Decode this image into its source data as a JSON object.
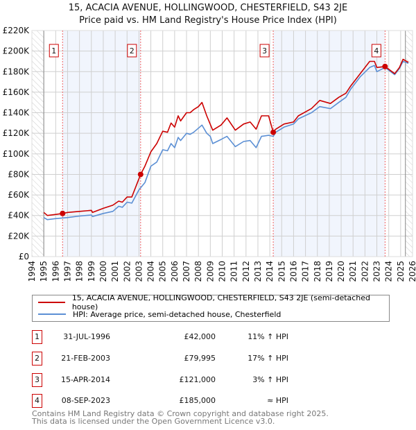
{
  "chart_data": {
    "type": "line",
    "title": "15, ACACIA AVENUE, HOLLINGWOOD, CHESTERFIELD, S43 2JE",
    "subtitle": "Price paid vs. HM Land Registry's House Price Index (HPI)",
    "xlim": [
      1994,
      2026
    ],
    "ylim": [
      0,
      220000
    ],
    "x_ticks": [
      "1994",
      "1995",
      "1996",
      "1997",
      "1998",
      "1999",
      "2000",
      "2001",
      "2002",
      "2003",
      "2004",
      "2005",
      "2006",
      "2007",
      "2008",
      "2009",
      "2010",
      "2011",
      "2012",
      "2013",
      "2014",
      "2015",
      "2016",
      "2017",
      "2018",
      "2019",
      "2020",
      "2021",
      "2022",
      "2023",
      "2024",
      "2025",
      "2026"
    ],
    "y_ticks": [
      {
        "v": 0,
        "label": "£0"
      },
      {
        "v": 20000,
        "label": "£20K"
      },
      {
        "v": 40000,
        "label": "£40K"
      },
      {
        "v": 60000,
        "label": "£60K"
      },
      {
        "v": 80000,
        "label": "£80K"
      },
      {
        "v": 100000,
        "label": "£100K"
      },
      {
        "v": 120000,
        "label": "£120K"
      },
      {
        "v": 140000,
        "label": "£140K"
      },
      {
        "v": 160000,
        "label": "£160K"
      },
      {
        "v": 180000,
        "label": "£180K"
      },
      {
        "v": 200000,
        "label": "£200K"
      },
      {
        "v": 220000,
        "label": "£220K"
      }
    ],
    "hatched_ranges": [
      [
        1994,
        1995
      ],
      [
        2025.4,
        2026
      ]
    ],
    "shaded_ranges": [
      [
        1996.58,
        2003.14
      ],
      [
        2014.29,
        2023.69
      ]
    ],
    "series": [
      {
        "name": "15, ACACIA AVENUE, HOLLINGWOOD, CHESTERFIELD, S43 2JE (semi-detached house)",
        "color": "#cc0000",
        "x": [
          1995,
          1995.3,
          1996,
          1996.58,
          1997,
          1998,
          1999,
          1999.1,
          2000,
          2000.8,
          2001.3,
          2001.6,
          2002,
          2002.4,
          2003.14,
          2003.5,
          2004,
          2004.5,
          2005,
          2005.4,
          2005.7,
          2006,
          2006.3,
          2006.5,
          2007,
          2007.3,
          2007.6,
          2008,
          2008.3,
          2008.7,
          2009.2,
          2009.9,
          2010.4,
          2011.1,
          2011.8,
          2012.35,
          2012.85,
          2013.3,
          2013.9,
          2014.29,
          2014.5,
          2015.2,
          2016,
          2016.4,
          2017.5,
          2018.2,
          2019.1,
          2019.8,
          2020.4,
          2020.8,
          2021.6,
          2022.4,
          2022.8,
          2023.0,
          2023.69,
          2024.5,
          2024.9,
          2025.2,
          2025.65
        ],
        "y": [
          43000,
          40000,
          41000,
          42000,
          43000,
          44000,
          45000,
          43000,
          47000,
          50000,
          54000,
          53000,
          58000,
          58000,
          79995,
          88000,
          102000,
          110000,
          122000,
          121000,
          130000,
          126000,
          137000,
          132000,
          140000,
          140000,
          143000,
          146000,
          150000,
          137000,
          123000,
          128000,
          135000,
          123000,
          129000,
          131000,
          124000,
          137000,
          137000,
          121000,
          124000,
          129000,
          131000,
          137000,
          144000,
          152000,
          149000,
          155000,
          159000,
          166000,
          178000,
          190000,
          190000,
          184000,
          185000,
          178000,
          184000,
          192000,
          189000
        ]
      },
      {
        "name": "HPI: Average price, semi-detached house, Chesterfield",
        "color": "#5b8fd4",
        "x": [
          1995,
          1995.3,
          1996,
          1997,
          1998,
          1999,
          1999.1,
          2000,
          2000.8,
          2001.3,
          2001.6,
          2002,
          2002.4,
          2003,
          2003.5,
          2004,
          2004.5,
          2005,
          2005.4,
          2005.7,
          2006,
          2006.3,
          2006.5,
          2007,
          2007.3,
          2007.6,
          2008,
          2008.3,
          2008.7,
          2009,
          2009.2,
          2009.9,
          2010.4,
          2011.1,
          2011.8,
          2012.35,
          2012.85,
          2013.3,
          2013.9,
          2014.29,
          2014.5,
          2015.2,
          2016,
          2016.4,
          2017.5,
          2018.2,
          2019.1,
          2019.8,
          2020.4,
          2020.8,
          2021.6,
          2022.4,
          2022.8,
          2023.0,
          2023.69,
          2024.5,
          2024.9,
          2025.2,
          2025.65
        ],
        "y": [
          38000,
          36000,
          37000,
          38000,
          39500,
          40500,
          39000,
          42000,
          44000,
          49000,
          48000,
          53000,
          52000,
          65000,
          72000,
          88000,
          92000,
          104000,
          103000,
          110000,
          106000,
          116000,
          113000,
          120000,
          119000,
          121000,
          125000,
          128000,
          120000,
          117000,
          110000,
          114000,
          117000,
          107000,
          112000,
          113000,
          106000,
          117000,
          118000,
          117000,
          121000,
          126000,
          129000,
          134000,
          140000,
          146000,
          144000,
          150000,
          155000,
          163000,
          175000,
          184000,
          186000,
          180000,
          184000,
          177000,
          183000,
          190000,
          188000
        ]
      }
    ],
    "sales": [
      {
        "label": "1",
        "x": 1996.58,
        "y": 42000
      },
      {
        "label": "2",
        "x": 2003.14,
        "y": 79995
      },
      {
        "label": "3",
        "x": 2014.29,
        "y": 121000
      },
      {
        "label": "4",
        "x": 2023.69,
        "y": 185000
      }
    ]
  },
  "legend": {
    "property": "15, ACACIA AVENUE, HOLLINGWOOD, CHESTERFIELD, S43 2JE (semi-detached house)",
    "hpi": "HPI: Average price, semi-detached house, Chesterfield"
  },
  "transactions": [
    {
      "num": "1",
      "date": "31-JUL-1996",
      "price": "£42,000",
      "relation": "11% ↑ HPI"
    },
    {
      "num": "2",
      "date": "21-FEB-2003",
      "price": "£79,995",
      "relation": "17% ↑ HPI"
    },
    {
      "num": "3",
      "date": "15-APR-2014",
      "price": "£121,000",
      "relation": "3% ↑ HPI"
    },
    {
      "num": "4",
      "date": "08-SEP-2023",
      "price": "£185,000",
      "relation": "≈ HPI"
    }
  ],
  "footer": {
    "line1": "Contains HM Land Registry data © Crown copyright and database right 2025.",
    "line2": "This data is licensed under the Open Government Licence v3.0."
  }
}
